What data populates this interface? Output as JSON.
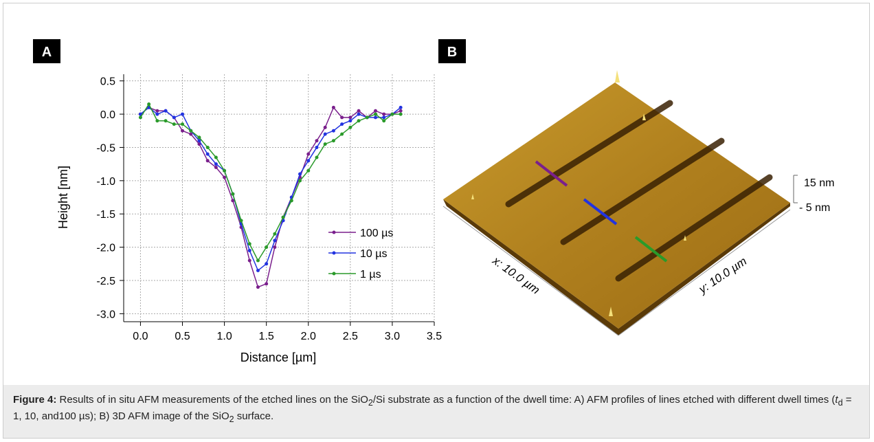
{
  "panel_labels": [
    "A",
    "B"
  ],
  "chart_data": {
    "type": "line",
    "x_label": "Distance [µm]",
    "y_label": "Height [nm]",
    "x": [
      0,
      0.1,
      0.2,
      0.3,
      0.4,
      0.5,
      0.6,
      0.7,
      0.8,
      0.9,
      1.0,
      1.1,
      1.2,
      1.3,
      1.4,
      1.5,
      1.6,
      1.7,
      1.8,
      1.9,
      2.0,
      2.1,
      2.2,
      2.3,
      2.4,
      2.5,
      2.6,
      2.7,
      2.8,
      2.9,
      3.0,
      3.1
    ],
    "series": [
      {
        "name": "100 µs",
        "color": "#7a1f8c",
        "values": [
          0,
          0.1,
          0.05,
          0.05,
          -0.05,
          -0.25,
          -0.3,
          -0.45,
          -0.7,
          -0.8,
          -0.95,
          -1.3,
          -1.7,
          -2.2,
          -2.6,
          -2.55,
          -2.0,
          -1.55,
          -1.25,
          -0.95,
          -0.6,
          -0.4,
          -0.2,
          0.1,
          -0.05,
          -0.05,
          0.05,
          -0.05,
          0.05,
          0.0,
          0.0,
          0.05
        ]
      },
      {
        "name": "10 µs",
        "color": "#2233e0",
        "values": [
          0,
          0.1,
          0.0,
          0.05,
          -0.05,
          0.0,
          -0.25,
          -0.4,
          -0.6,
          -0.75,
          -0.85,
          -1.2,
          -1.65,
          -2.05,
          -2.35,
          -2.25,
          -1.9,
          -1.6,
          -1.25,
          -0.9,
          -0.7,
          -0.5,
          -0.3,
          -0.25,
          -0.15,
          -0.1,
          0.0,
          -0.05,
          -0.05,
          -0.05,
          0.0,
          0.1
        ]
      },
      {
        "name": "1 µs",
        "color": "#2a9a2a",
        "values": [
          -0.05,
          0.15,
          -0.1,
          -0.1,
          -0.15,
          -0.15,
          -0.25,
          -0.35,
          -0.5,
          -0.65,
          -0.85,
          -1.2,
          -1.6,
          -1.95,
          -2.2,
          -2.0,
          -1.8,
          -1.55,
          -1.3,
          -1.0,
          -0.85,
          -0.65,
          -0.45,
          -0.4,
          -0.3,
          -0.2,
          -0.1,
          -0.05,
          0.0,
          -0.1,
          0.0,
          0.0
        ]
      }
    ],
    "xlim": [
      -0.2,
      3.5
    ],
    "ylim": [
      -3.12,
      0.6
    ],
    "xticks": [
      {
        "value": 0,
        "label": "0.0"
      },
      0.5,
      {
        "value": 1,
        "label": "1.0"
      },
      1.5,
      {
        "value": 2,
        "label": "2.0"
      },
      2.5,
      {
        "value": 3,
        "label": "3.0"
      },
      3.5
    ],
    "yticks": [
      0.5,
      {
        "value": 0,
        "label": "0.0"
      },
      -0.5,
      {
        "value": -1,
        "label": "-1.0"
      },
      -1.5,
      {
        "value": -2,
        "label": "-2.0"
      },
      -2.5,
      {
        "value": -3,
        "label": "-3.0"
      }
    ],
    "grid": true,
    "legend": "lower right"
  },
  "afm_image": {
    "x_label": "x: 10.0 µm",
    "y_label": "y: 10.0 µm",
    "scale_top": "15 nm",
    "scale_bottom": "- 5 nm"
  },
  "caption": [
    "Figure 4:",
    " Results of in situ AFM measurements of the etched lines on the SiO",
    "2",
    "/Si substrate as a function of the dwell time: A) AFM profiles of lines etched with different dwell times (",
    "t",
    "d",
    " = 1, 10, and100 µs); B) 3D AFM image of the SiO",
    "2",
    " surface."
  ]
}
